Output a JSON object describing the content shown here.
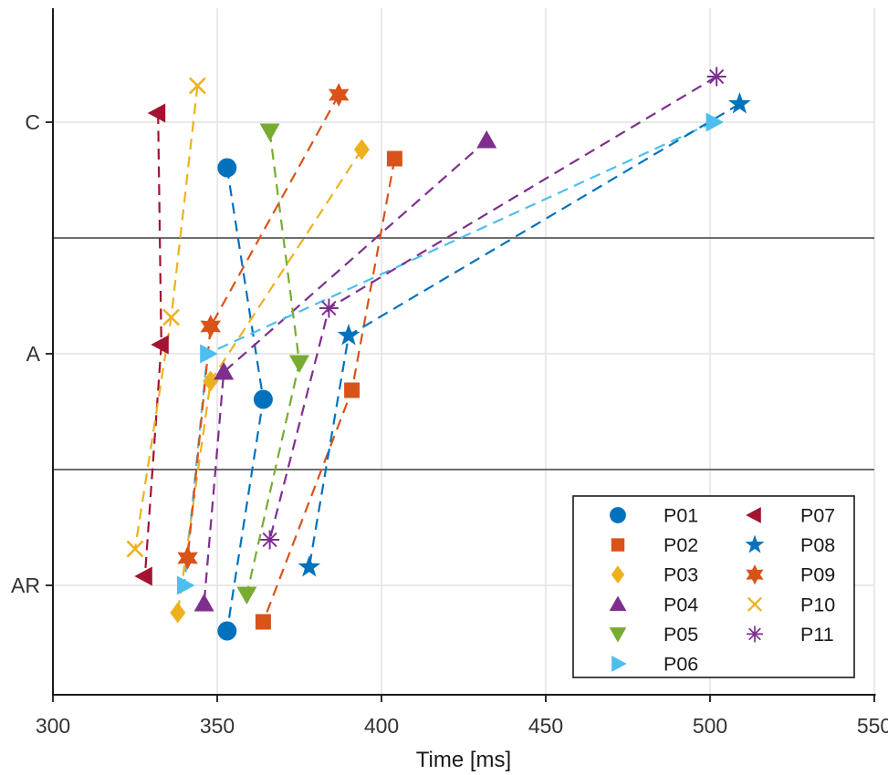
{
  "chart_data": {
    "type": "scatter",
    "title": "",
    "xlabel": "Time [ms]",
    "ylabel": "",
    "xlim": [
      300,
      550
    ],
    "x_ticks": [
      300,
      350,
      400,
      450,
      500,
      550
    ],
    "y_categories": [
      "AR",
      "A",
      "C"
    ],
    "category_axis": "y",
    "grid": true,
    "line_style": "dashed",
    "legend_position": "bottom-right",
    "legend_columns": [
      [
        "P01",
        "P02",
        "P03",
        "P04",
        "P05",
        "P06"
      ],
      [
        "P07",
        "P08",
        "P09",
        "P10",
        "P11"
      ]
    ],
    "series": [
      {
        "name": "P01",
        "marker": "circle",
        "color": "#0072BD",
        "values": {
          "C": 353,
          "A": 364,
          "AR": 353
        }
      },
      {
        "name": "P02",
        "marker": "square",
        "color": "#D95319",
        "values": {
          "C": 404,
          "A": 391,
          "AR": 364
        }
      },
      {
        "name": "P03",
        "marker": "diamond",
        "color": "#EDB120",
        "values": {
          "C": 394,
          "A": 348,
          "AR": 338
        }
      },
      {
        "name": "P04",
        "marker": "triangle-up",
        "color": "#7E2F8E",
        "values": {
          "C": 432,
          "A": 352,
          "AR": 346
        }
      },
      {
        "name": "P05",
        "marker": "triangle-down",
        "color": "#77AC30",
        "values": {
          "C": 366,
          "A": 375,
          "AR": 359
        }
      },
      {
        "name": "P06",
        "marker": "triangle-right",
        "color": "#4DBEEE",
        "values": {
          "C": 501,
          "A": 347,
          "AR": 340
        }
      },
      {
        "name": "P07",
        "marker": "triangle-left",
        "color": "#A2142F",
        "values": {
          "C": 332,
          "A": 333,
          "AR": 328
        }
      },
      {
        "name": "P08",
        "marker": "star",
        "color": "#0072BD",
        "values": {
          "C": 509,
          "A": 390,
          "AR": 378
        }
      },
      {
        "name": "P09",
        "marker": "hexagram",
        "color": "#D95319",
        "values": {
          "C": 387,
          "A": 348,
          "AR": 341
        }
      },
      {
        "name": "P10",
        "marker": "x",
        "color": "#EDB120",
        "values": {
          "C": 344,
          "A": 336,
          "AR": 325
        }
      },
      {
        "name": "P11",
        "marker": "asterisk",
        "color": "#7E2F8E",
        "values": {
          "C": 502,
          "A": 384,
          "AR": 366
        }
      }
    ]
  },
  "style": {
    "background": "#ffffff",
    "axis_color": "#1a1a1a",
    "tick_label_color": "#333333",
    "grid_color": "#e2e2e2",
    "separator_color": "#3d3d3d",
    "legend_background": "#ffffff",
    "legend_border_color": "#1a1a1a"
  }
}
